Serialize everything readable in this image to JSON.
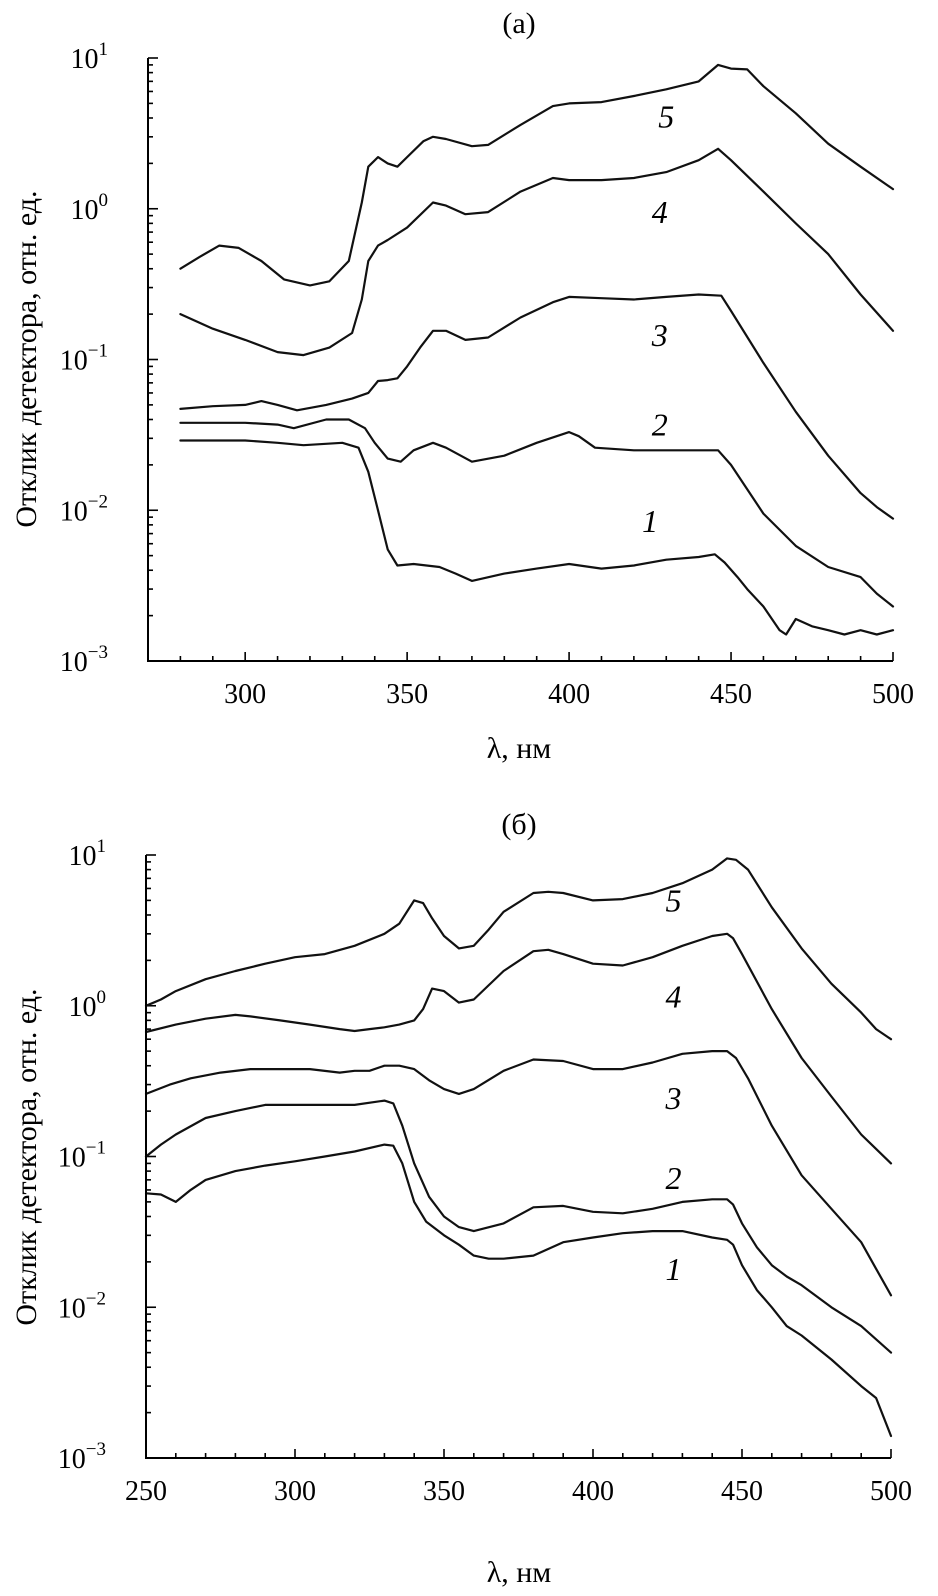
{
  "chart_data": [
    {
      "type": "line",
      "title": "(а)",
      "xlabel": "λ, нм",
      "ylabel": "Отклик детектора, отн. ед.",
      "xlim": [
        270,
        500
      ],
      "ylim": [
        0.001,
        10
      ],
      "yscale": "log",
      "xticks": [
        "300",
        "350",
        "400",
        "450",
        "500"
      ],
      "yticks": [
        {
          "base": "10",
          "exp": "−3"
        },
        {
          "base": "10",
          "exp": "−2"
        },
        {
          "base": "10",
          "exp": "−1"
        },
        {
          "base": "10",
          "exp": "0"
        },
        {
          "base": "10",
          "exp": "1"
        }
      ],
      "series": [
        {
          "name": "1",
          "label_at": [
            425,
            0.0085
          ],
          "x": [
            280,
            290,
            300,
            310,
            318,
            330,
            335,
            338,
            341,
            344,
            347,
            352,
            360,
            365,
            370,
            380,
            390,
            400,
            410,
            420,
            430,
            440,
            445,
            448,
            452,
            455,
            460,
            465,
            467,
            470,
            475,
            480,
            485,
            490,
            495,
            500
          ],
          "y": [
            0.029,
            0.029,
            0.029,
            0.028,
            0.027,
            0.028,
            0.026,
            0.018,
            0.01,
            0.0055,
            0.0043,
            0.0044,
            0.0042,
            0.0038,
            0.0034,
            0.0038,
            0.0041,
            0.0044,
            0.0041,
            0.0043,
            0.0047,
            0.0049,
            0.0051,
            0.0045,
            0.0036,
            0.003,
            0.0023,
            0.0016,
            0.0015,
            0.0019,
            0.0017,
            0.0016,
            0.0015,
            0.0016,
            0.0015,
            0.0016
          ]
        },
        {
          "name": "2",
          "label_at": [
            428,
            0.037
          ],
          "x": [
            280,
            300,
            310,
            315,
            325,
            332,
            337,
            340,
            344,
            348,
            352,
            358,
            362,
            370,
            380,
            390,
            400,
            403,
            408,
            420,
            430,
            440,
            446,
            450,
            460,
            470,
            480,
            490,
            495,
            500
          ],
          "y": [
            0.038,
            0.038,
            0.037,
            0.035,
            0.04,
            0.04,
            0.035,
            0.028,
            0.022,
            0.021,
            0.025,
            0.028,
            0.026,
            0.021,
            0.023,
            0.028,
            0.033,
            0.031,
            0.026,
            0.025,
            0.025,
            0.025,
            0.025,
            0.02,
            0.0095,
            0.0058,
            0.0042,
            0.0036,
            0.0028,
            0.0023
          ]
        },
        {
          "name": "3",
          "label_at": [
            428,
            0.145
          ],
          "x": [
            280,
            290,
            300,
            305,
            310,
            316,
            325,
            333,
            338,
            341,
            344,
            347,
            350,
            354,
            358,
            362,
            368,
            375,
            385,
            395,
            400,
            410,
            420,
            430,
            440,
            447,
            450,
            460,
            470,
            480,
            490,
            495,
            500
          ],
          "y": [
            0.047,
            0.049,
            0.05,
            0.053,
            0.05,
            0.046,
            0.05,
            0.055,
            0.06,
            0.072,
            0.073,
            0.075,
            0.09,
            0.12,
            0.155,
            0.155,
            0.135,
            0.14,
            0.19,
            0.24,
            0.26,
            0.255,
            0.25,
            0.26,
            0.27,
            0.265,
            0.21,
            0.095,
            0.045,
            0.023,
            0.013,
            0.0105,
            0.0088
          ]
        },
        {
          "name": "4",
          "label_at": [
            428,
            0.95
          ],
          "x": [
            280,
            290,
            300,
            310,
            318,
            326,
            333,
            336,
            338,
            341,
            344,
            350,
            358,
            362,
            368,
            375,
            385,
            395,
            400,
            410,
            420,
            430,
            440,
            446,
            450,
            460,
            470,
            480,
            490,
            500
          ],
          "y": [
            0.2,
            0.16,
            0.135,
            0.112,
            0.107,
            0.12,
            0.15,
            0.25,
            0.45,
            0.57,
            0.62,
            0.75,
            1.1,
            1.05,
            0.92,
            0.95,
            1.3,
            1.6,
            1.55,
            1.55,
            1.6,
            1.75,
            2.1,
            2.5,
            2.1,
            1.3,
            0.8,
            0.5,
            0.27,
            0.155
          ]
        },
        {
          "name": "5",
          "label_at": [
            430,
            4.1
          ],
          "x": [
            280,
            286,
            292,
            298,
            305,
            312,
            320,
            326,
            332,
            336,
            338,
            341,
            344,
            347,
            350,
            355,
            358,
            362,
            370,
            375,
            385,
            395,
            400,
            410,
            420,
            430,
            440,
            446,
            450,
            455,
            460,
            470,
            480,
            490,
            500
          ],
          "y": [
            0.4,
            0.48,
            0.57,
            0.55,
            0.45,
            0.34,
            0.31,
            0.33,
            0.45,
            1.1,
            1.9,
            2.2,
            2.0,
            1.9,
            2.2,
            2.8,
            3.0,
            2.9,
            2.6,
            2.65,
            3.6,
            4.8,
            5.0,
            5.1,
            5.6,
            6.2,
            7.0,
            9.0,
            8.5,
            8.4,
            6.5,
            4.3,
            2.7,
            1.9,
            1.35
          ]
        }
      ]
    },
    {
      "type": "line",
      "title": "(б)",
      "xlabel": "λ, нм",
      "ylabel": "Отклик детектора, отн. ед.",
      "xlim": [
        250,
        500
      ],
      "ylim": [
        0.001,
        10
      ],
      "yscale": "log",
      "xticks": [
        "250",
        "300",
        "350",
        "400",
        "450",
        "500"
      ],
      "yticks": [
        {
          "base": "10",
          "exp": "−3"
        },
        {
          "base": "10",
          "exp": "−2"
        },
        {
          "base": "10",
          "exp": "−1"
        },
        {
          "base": "10",
          "exp": "0"
        },
        {
          "base": "10",
          "exp": "1"
        }
      ],
      "series": [
        {
          "name": "1",
          "label_at": [
            427,
            0.018
          ],
          "x": [
            250,
            255,
            260,
            265,
            270,
            280,
            290,
            300,
            310,
            320,
            330,
            333,
            336,
            340,
            344,
            350,
            355,
            360,
            365,
            370,
            380,
            390,
            400,
            410,
            420,
            430,
            440,
            445,
            447,
            450,
            455,
            460,
            465,
            470,
            480,
            490,
            495,
            500
          ],
          "y": [
            0.057,
            0.056,
            0.05,
            0.06,
            0.07,
            0.08,
            0.087,
            0.093,
            0.1,
            0.108,
            0.12,
            0.118,
            0.09,
            0.05,
            0.037,
            0.03,
            0.026,
            0.022,
            0.021,
            0.021,
            0.022,
            0.027,
            0.029,
            0.031,
            0.032,
            0.032,
            0.029,
            0.028,
            0.026,
            0.019,
            0.013,
            0.01,
            0.0075,
            0.0065,
            0.0045,
            0.003,
            0.0025,
            0.0014
          ]
        },
        {
          "name": "2",
          "label_at": [
            427,
            0.072
          ],
          "x": [
            250,
            255,
            260,
            270,
            280,
            290,
            300,
            310,
            320,
            330,
            333,
            336,
            340,
            345,
            350,
            355,
            360,
            370,
            380,
            390,
            400,
            410,
            420,
            430,
            440,
            445,
            447,
            450,
            455,
            460,
            465,
            470,
            480,
            490,
            500
          ],
          "y": [
            0.1,
            0.12,
            0.14,
            0.18,
            0.2,
            0.22,
            0.22,
            0.22,
            0.22,
            0.235,
            0.225,
            0.16,
            0.09,
            0.054,
            0.04,
            0.034,
            0.032,
            0.036,
            0.046,
            0.047,
            0.043,
            0.042,
            0.045,
            0.05,
            0.052,
            0.052,
            0.048,
            0.036,
            0.025,
            0.019,
            0.016,
            0.014,
            0.01,
            0.0075,
            0.005
          ]
        },
        {
          "name": "3",
          "label_at": [
            427,
            0.245
          ],
          "x": [
            250,
            258,
            265,
            275,
            285,
            295,
            305,
            315,
            320,
            325,
            330,
            335,
            340,
            345,
            350,
            355,
            360,
            370,
            380,
            390,
            400,
            410,
            420,
            430,
            440,
            445,
            448,
            452,
            460,
            470,
            480,
            490,
            495,
            500
          ],
          "y": [
            0.26,
            0.3,
            0.33,
            0.36,
            0.38,
            0.38,
            0.38,
            0.36,
            0.37,
            0.37,
            0.4,
            0.4,
            0.38,
            0.32,
            0.28,
            0.26,
            0.28,
            0.37,
            0.44,
            0.43,
            0.38,
            0.38,
            0.42,
            0.48,
            0.5,
            0.5,
            0.45,
            0.33,
            0.16,
            0.075,
            0.045,
            0.027,
            0.018,
            0.012
          ]
        },
        {
          "name": "4",
          "label_at": [
            427,
            1.15
          ],
          "x": [
            250,
            260,
            270,
            280,
            285,
            295,
            305,
            315,
            320,
            325,
            330,
            335,
            340,
            343,
            346,
            350,
            355,
            360,
            370,
            380,
            385,
            390,
            400,
            410,
            420,
            430,
            440,
            445,
            447,
            450,
            460,
            470,
            480,
            490,
            500
          ],
          "y": [
            0.67,
            0.75,
            0.82,
            0.87,
            0.85,
            0.8,
            0.75,
            0.7,
            0.68,
            0.7,
            0.72,
            0.75,
            0.8,
            0.95,
            1.3,
            1.25,
            1.05,
            1.1,
            1.7,
            2.3,
            2.35,
            2.2,
            1.9,
            1.85,
            2.1,
            2.5,
            2.9,
            3.0,
            2.8,
            2.2,
            0.95,
            0.45,
            0.25,
            0.14,
            0.09
          ]
        },
        {
          "name": "5",
          "label_at": [
            427,
            5.0
          ],
          "x": [
            250,
            255,
            260,
            270,
            280,
            290,
            300,
            310,
            320,
            330,
            335,
            340,
            343,
            346,
            350,
            355,
            360,
            365,
            370,
            380,
            385,
            390,
            400,
            410,
            420,
            430,
            440,
            445,
            448,
            452,
            460,
            470,
            480,
            490,
            495,
            500
          ],
          "y": [
            1.0,
            1.1,
            1.25,
            1.5,
            1.7,
            1.9,
            2.1,
            2.2,
            2.5,
            3.0,
            3.5,
            5.0,
            4.8,
            3.8,
            2.9,
            2.4,
            2.5,
            3.2,
            4.2,
            5.6,
            5.7,
            5.6,
            5.0,
            5.1,
            5.6,
            6.5,
            8.0,
            9.5,
            9.3,
            8.0,
            4.5,
            2.4,
            1.4,
            0.9,
            0.7,
            0.6
          ]
        }
      ]
    }
  ]
}
